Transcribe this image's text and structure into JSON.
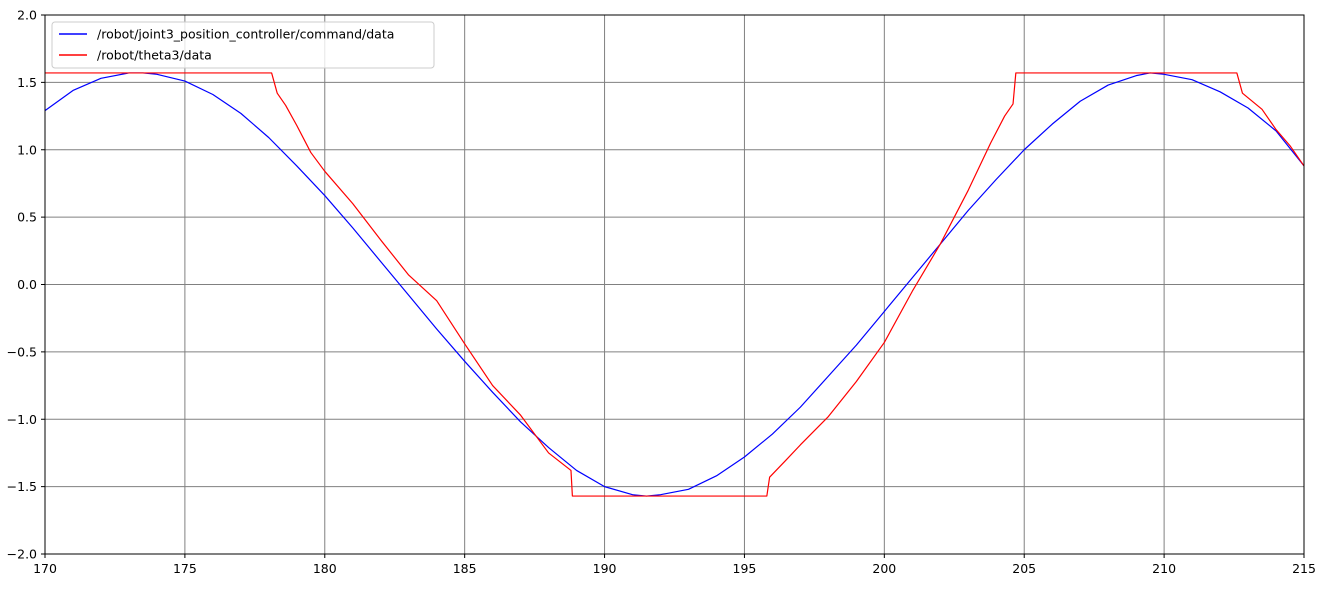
{
  "chart_data": {
    "type": "line",
    "title": "",
    "xlabel": "",
    "ylabel": "",
    "xlim": [
      170,
      215
    ],
    "ylim": [
      -2.0,
      2.0
    ],
    "x_ticks": [
      170,
      175,
      180,
      185,
      190,
      195,
      200,
      205,
      210,
      215
    ],
    "x_tick_labels": [
      "170",
      "175",
      "180",
      "185",
      "190",
      "195",
      "200",
      "205",
      "210",
      "215"
    ],
    "y_ticks": [
      -2.0,
      -1.5,
      -1.0,
      -0.5,
      0.0,
      0.5,
      1.0,
      1.5,
      2.0
    ],
    "y_tick_labels": [
      "−2.0",
      "−1.5",
      "−1.0",
      "−0.5",
      "0.0",
      "0.5",
      "1.0",
      "1.5",
      "2.0"
    ],
    "grid": true,
    "legend_position": "top-left",
    "series": [
      {
        "name": "/robot/joint3_position_controller/command/data",
        "color": "#0000ff",
        "x": [
          170,
          171,
          172,
          173,
          173.5,
          174,
          175,
          176,
          177,
          178,
          179,
          180,
          181,
          182,
          183,
          184,
          185,
          186,
          187,
          188,
          189,
          190,
          191,
          191.5,
          192,
          193,
          194,
          195,
          196,
          197,
          198,
          199,
          200,
          201,
          202,
          203,
          204,
          205,
          206,
          207,
          208,
          209,
          209.5,
          210,
          211,
          212,
          213,
          214,
          215
        ],
        "y": [
          1.29,
          1.44,
          1.53,
          1.57,
          1.57,
          1.56,
          1.51,
          1.41,
          1.27,
          1.09,
          0.88,
          0.66,
          0.42,
          0.17,
          -0.08,
          -0.33,
          -0.57,
          -0.8,
          -1.02,
          -1.21,
          -1.38,
          -1.5,
          -1.56,
          -1.57,
          -1.56,
          -1.52,
          -1.42,
          -1.28,
          -1.11,
          -0.91,
          -0.68,
          -0.45,
          -0.2,
          0.05,
          0.3,
          0.55,
          0.78,
          1.0,
          1.19,
          1.36,
          1.48,
          1.55,
          1.57,
          1.56,
          1.52,
          1.43,
          1.31,
          1.14,
          0.88
        ]
      },
      {
        "name": "/robot/theta3/data",
        "color": "#ff0000",
        "x": [
          170,
          178.1,
          178.3,
          178.6,
          179,
          179.5,
          180,
          181,
          182,
          183,
          184,
          185,
          186,
          187,
          188,
          188.8,
          188.85,
          195.8,
          195.9,
          196.5,
          197,
          198,
          199,
          200,
          201,
          202,
          203,
          203.8,
          204.3,
          204.6,
          204.7,
          212.6,
          212.8,
          213.5,
          214,
          214.5,
          215
        ],
        "y": [
          1.57,
          1.57,
          1.42,
          1.33,
          1.18,
          0.98,
          0.84,
          0.6,
          0.33,
          0.07,
          -0.12,
          -0.44,
          -0.75,
          -0.97,
          -1.25,
          -1.38,
          -1.57,
          -1.57,
          -1.43,
          -1.3,
          -1.19,
          -0.98,
          -0.72,
          -0.43,
          -0.05,
          0.3,
          0.7,
          1.05,
          1.25,
          1.34,
          1.57,
          1.57,
          1.42,
          1.3,
          1.15,
          1.03,
          0.88
        ]
      }
    ]
  }
}
